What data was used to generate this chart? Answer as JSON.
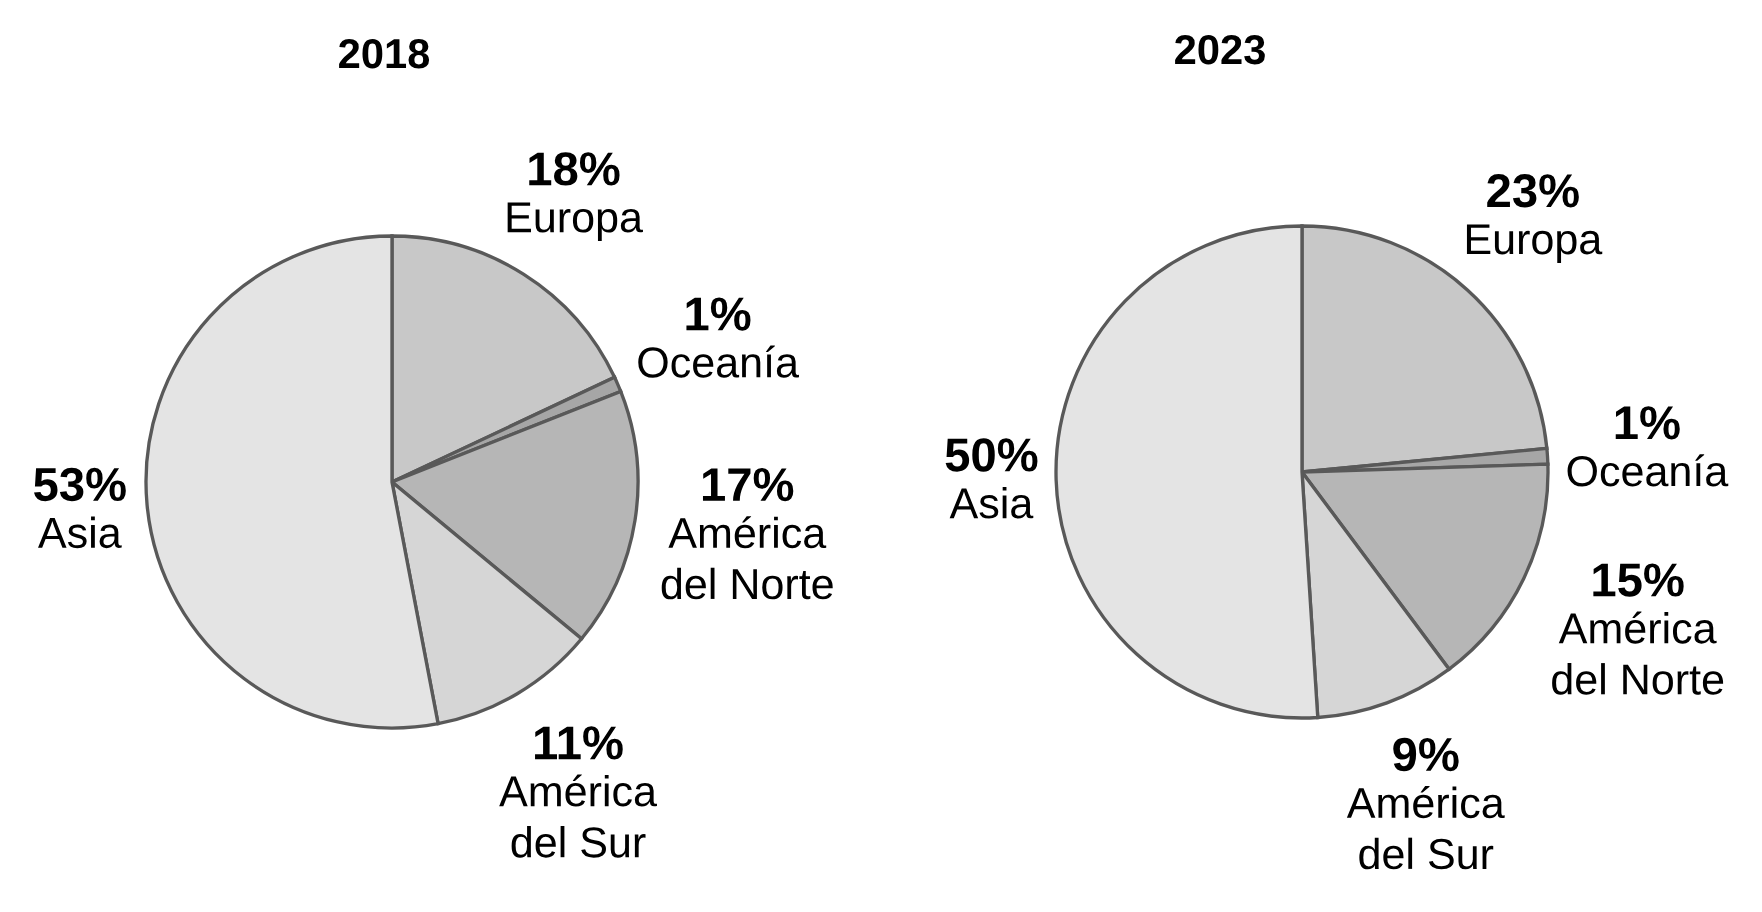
{
  "chart_data": [
    {
      "type": "pie",
      "title": "2018",
      "categories": [
        "Europa",
        "Oceanía",
        "América del Norte",
        "América del Sur",
        "Asia"
      ],
      "values": [
        18,
        1,
        17,
        11,
        53
      ],
      "value_labels": [
        "18%",
        "1%",
        "17%",
        "11%",
        "53%"
      ],
      "colors": [
        "#c8c8c8",
        "#a6a6a6",
        "#b6b6b6",
        "#d6d6d6",
        "#e4e4e4"
      ]
    },
    {
      "type": "pie",
      "title": "2023",
      "categories": [
        "Europa",
        "Oceanía",
        "América del Norte",
        "América del Sur",
        "Asia"
      ],
      "values": [
        23,
        1,
        15,
        9,
        50
      ],
      "value_labels": [
        "23%",
        "1%",
        "15%",
        "9%",
        "50%"
      ],
      "colors": [
        "#c8c8c8",
        "#a6a6a6",
        "#b6b6b6",
        "#d6d6d6",
        "#e4e4e4"
      ]
    }
  ]
}
